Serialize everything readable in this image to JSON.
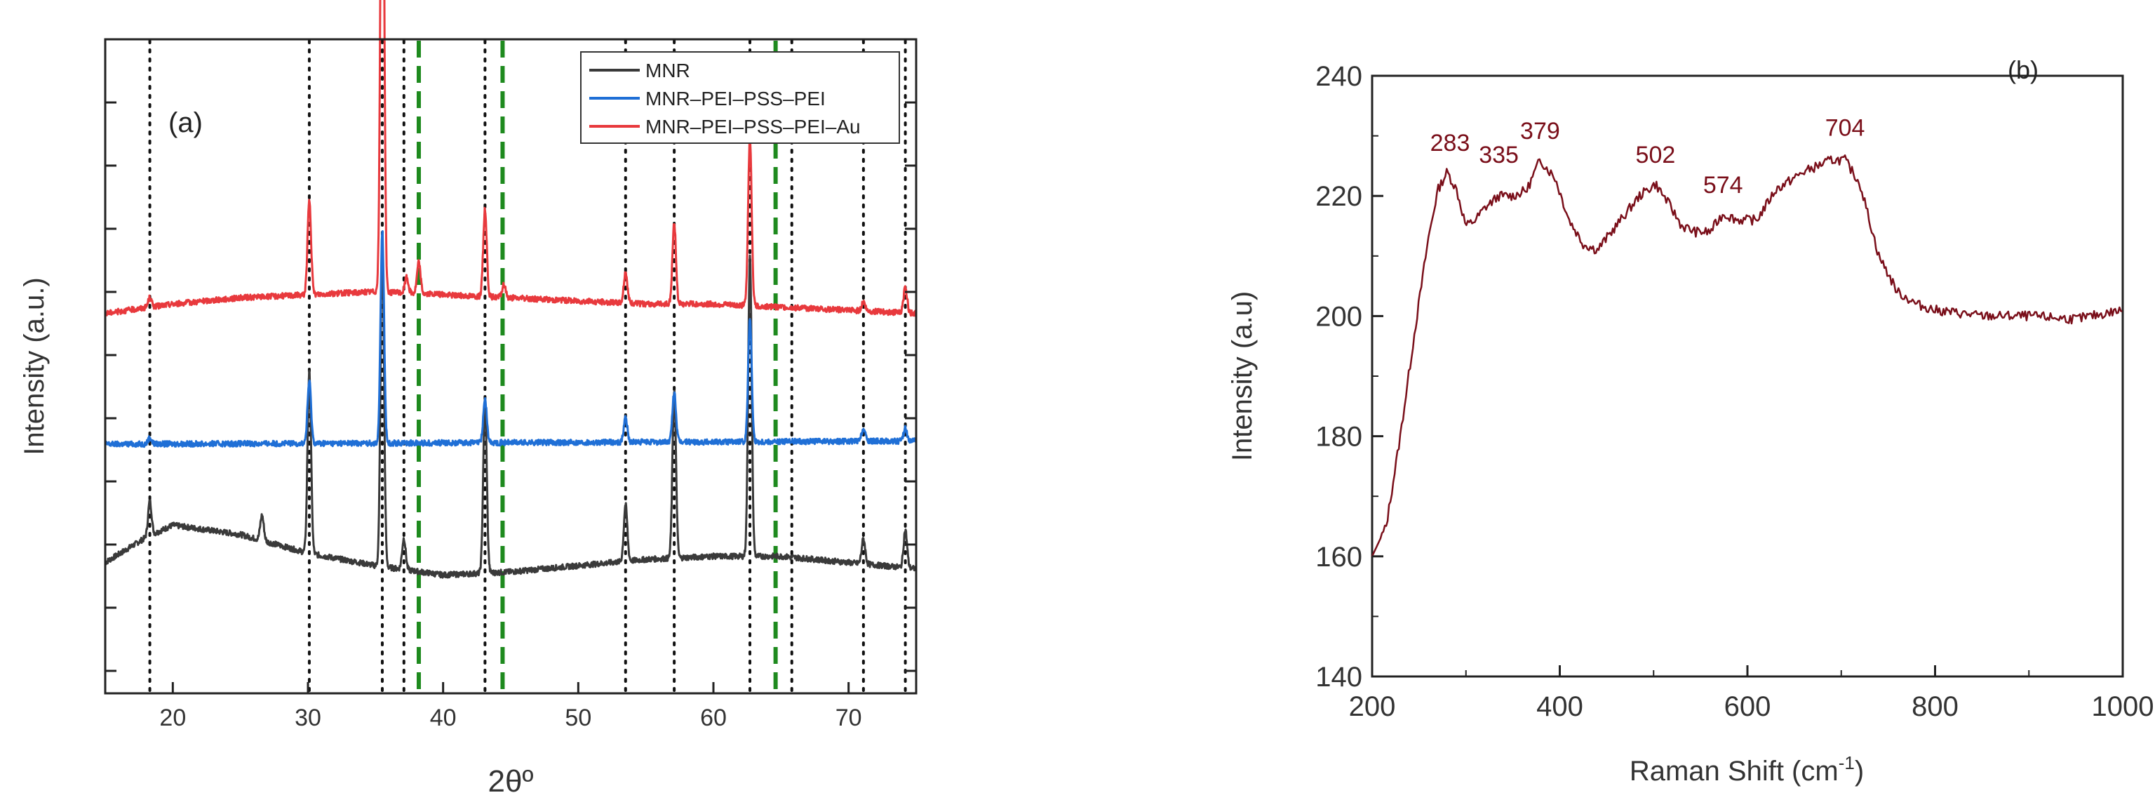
{
  "chart_data": [
    {
      "panel": "(a)",
      "type": "line",
      "xlabel": "2θº",
      "ylabel": "Intensity (a.u.)",
      "xlim": [
        15,
        75
      ],
      "xticks": [
        20,
        30,
        40,
        50,
        60,
        70
      ],
      "y_tick_labels_shown": false,
      "legend": {
        "position": "top-right",
        "entries": [
          {
            "label": "MNR",
            "color": "#3a3a3a"
          },
          {
            "label": "MNR–PEI–PSS–PEI",
            "color": "#1f6fd6"
          },
          {
            "label": "MNR–PEI–PSS–PEI–Au",
            "color": "#e8393d"
          }
        ]
      },
      "series": [
        {
          "name": "MNR",
          "color": "#3a3a3a",
          "baseline": [
            [
              15,
              0.21
            ],
            [
              18,
              0.25
            ],
            [
              20,
              0.27
            ],
            [
              25,
              0.255
            ],
            [
              30,
              0.225
            ],
            [
              35,
              0.205
            ],
            [
              40,
              0.19
            ],
            [
              45,
              0.195
            ],
            [
              50,
              0.205
            ],
            [
              55,
              0.215
            ],
            [
              60,
              0.22
            ],
            [
              65,
              0.22
            ],
            [
              70,
              0.21
            ],
            [
              75,
              0.2
            ]
          ],
          "peaks": [
            [
              18.3,
              0.055
            ],
            [
              26.6,
              0.04
            ],
            [
              30.1,
              0.29
            ],
            [
              35.5,
              0.52
            ],
            [
              37.1,
              0.05
            ],
            [
              43.1,
              0.28
            ],
            [
              53.5,
              0.09
            ],
            [
              57.1,
              0.27
            ],
            [
              62.7,
              0.48
            ],
            [
              71.1,
              0.04
            ],
            [
              74.2,
              0.06
            ]
          ]
        },
        {
          "name": "MNR–PEI–PSS–PEI",
          "color": "#1f6fd6",
          "baseline": [
            [
              15,
              0.4
            ],
            [
              75,
              0.405
            ]
          ],
          "peaks": [
            [
              18.3,
              0.01
            ],
            [
              30.1,
              0.1
            ],
            [
              35.5,
              0.34
            ],
            [
              43.1,
              0.07
            ],
            [
              53.5,
              0.04
            ],
            [
              57.1,
              0.08
            ],
            [
              62.7,
              0.2
            ],
            [
              71.1,
              0.02
            ],
            [
              74.2,
              0.02
            ]
          ]
        },
        {
          "name": "MNR–PEI–PSS–PEI–Au",
          "color": "#e8393d",
          "baseline": [
            [
              15,
              0.61
            ],
            [
              20,
              0.625
            ],
            [
              25,
              0.635
            ],
            [
              30,
              0.64
            ],
            [
              35,
              0.645
            ],
            [
              40,
              0.64
            ],
            [
              45,
              0.635
            ],
            [
              50,
              0.63
            ],
            [
              55,
              0.625
            ],
            [
              60,
              0.625
            ],
            [
              65,
              0.62
            ],
            [
              70,
              0.615
            ],
            [
              75,
              0.61
            ]
          ],
          "peaks": [
            [
              18.3,
              0.015
            ],
            [
              30.1,
              0.15
            ],
            [
              35.5,
              0.95
            ],
            [
              37.3,
              0.025
            ],
            [
              38.2,
              0.05
            ],
            [
              43.1,
              0.14
            ],
            [
              44.5,
              0.02
            ],
            [
              53.5,
              0.05
            ],
            [
              57.1,
              0.13
            ],
            [
              62.7,
              0.27
            ],
            [
              71.1,
              0.015
            ],
            [
              74.2,
              0.04
            ]
          ]
        }
      ],
      "reference_lines": {
        "dotted_black_x": [
          18.3,
          30.1,
          35.5,
          37.1,
          43.1,
          53.5,
          57.1,
          62.7,
          65.8,
          71.1,
          74.2
        ],
        "dashed_green_x": [
          38.2,
          44.4,
          64.6
        ]
      }
    },
    {
      "panel": "(b)",
      "type": "line",
      "xlabel": "Raman Shift (cm",
      "xlabel_sup": "-1",
      "xlabel_end": ")",
      "ylabel": "Intensity (a.u)",
      "xlim": [
        200,
        1000
      ],
      "ylim": [
        140,
        240
      ],
      "xticks": [
        200,
        400,
        600,
        800,
        1000
      ],
      "yticks": [
        140,
        160,
        180,
        200,
        220,
        240
      ],
      "color": "#7a0f1a",
      "peak_labels": [
        {
          "x": 283,
          "y": 227.5,
          "text": "283"
        },
        {
          "x": 335,
          "y": 225.5,
          "text": "335"
        },
        {
          "x": 379,
          "y": 229.5,
          "text": "379"
        },
        {
          "x": 502,
          "y": 225.5,
          "text": "502"
        },
        {
          "x": 574,
          "y": 220.5,
          "text": "574"
        },
        {
          "x": 704,
          "y": 230.0,
          "text": "704"
        }
      ],
      "x": [
        200,
        215,
        230,
        245,
        260,
        270,
        280,
        290,
        300,
        310,
        320,
        335,
        350,
        365,
        379,
        395,
        410,
        425,
        440,
        455,
        470,
        485,
        502,
        515,
        530,
        545,
        560,
        574,
        590,
        610,
        630,
        660,
        690,
        704,
        720,
        740,
        760,
        780,
        800,
        850,
        900,
        950,
        1000
      ],
      "y": [
        160,
        165,
        180,
        197,
        213,
        221,
        224,
        221,
        215,
        216,
        218,
        220,
        220,
        221,
        226,
        223,
        216,
        212,
        211,
        214,
        217,
        220,
        222,
        219,
        215,
        214,
        214,
        217,
        216,
        216,
        221,
        224,
        226,
        226,
        222,
        210,
        204,
        202,
        201,
        200,
        200,
        199.5,
        201
      ]
    }
  ]
}
